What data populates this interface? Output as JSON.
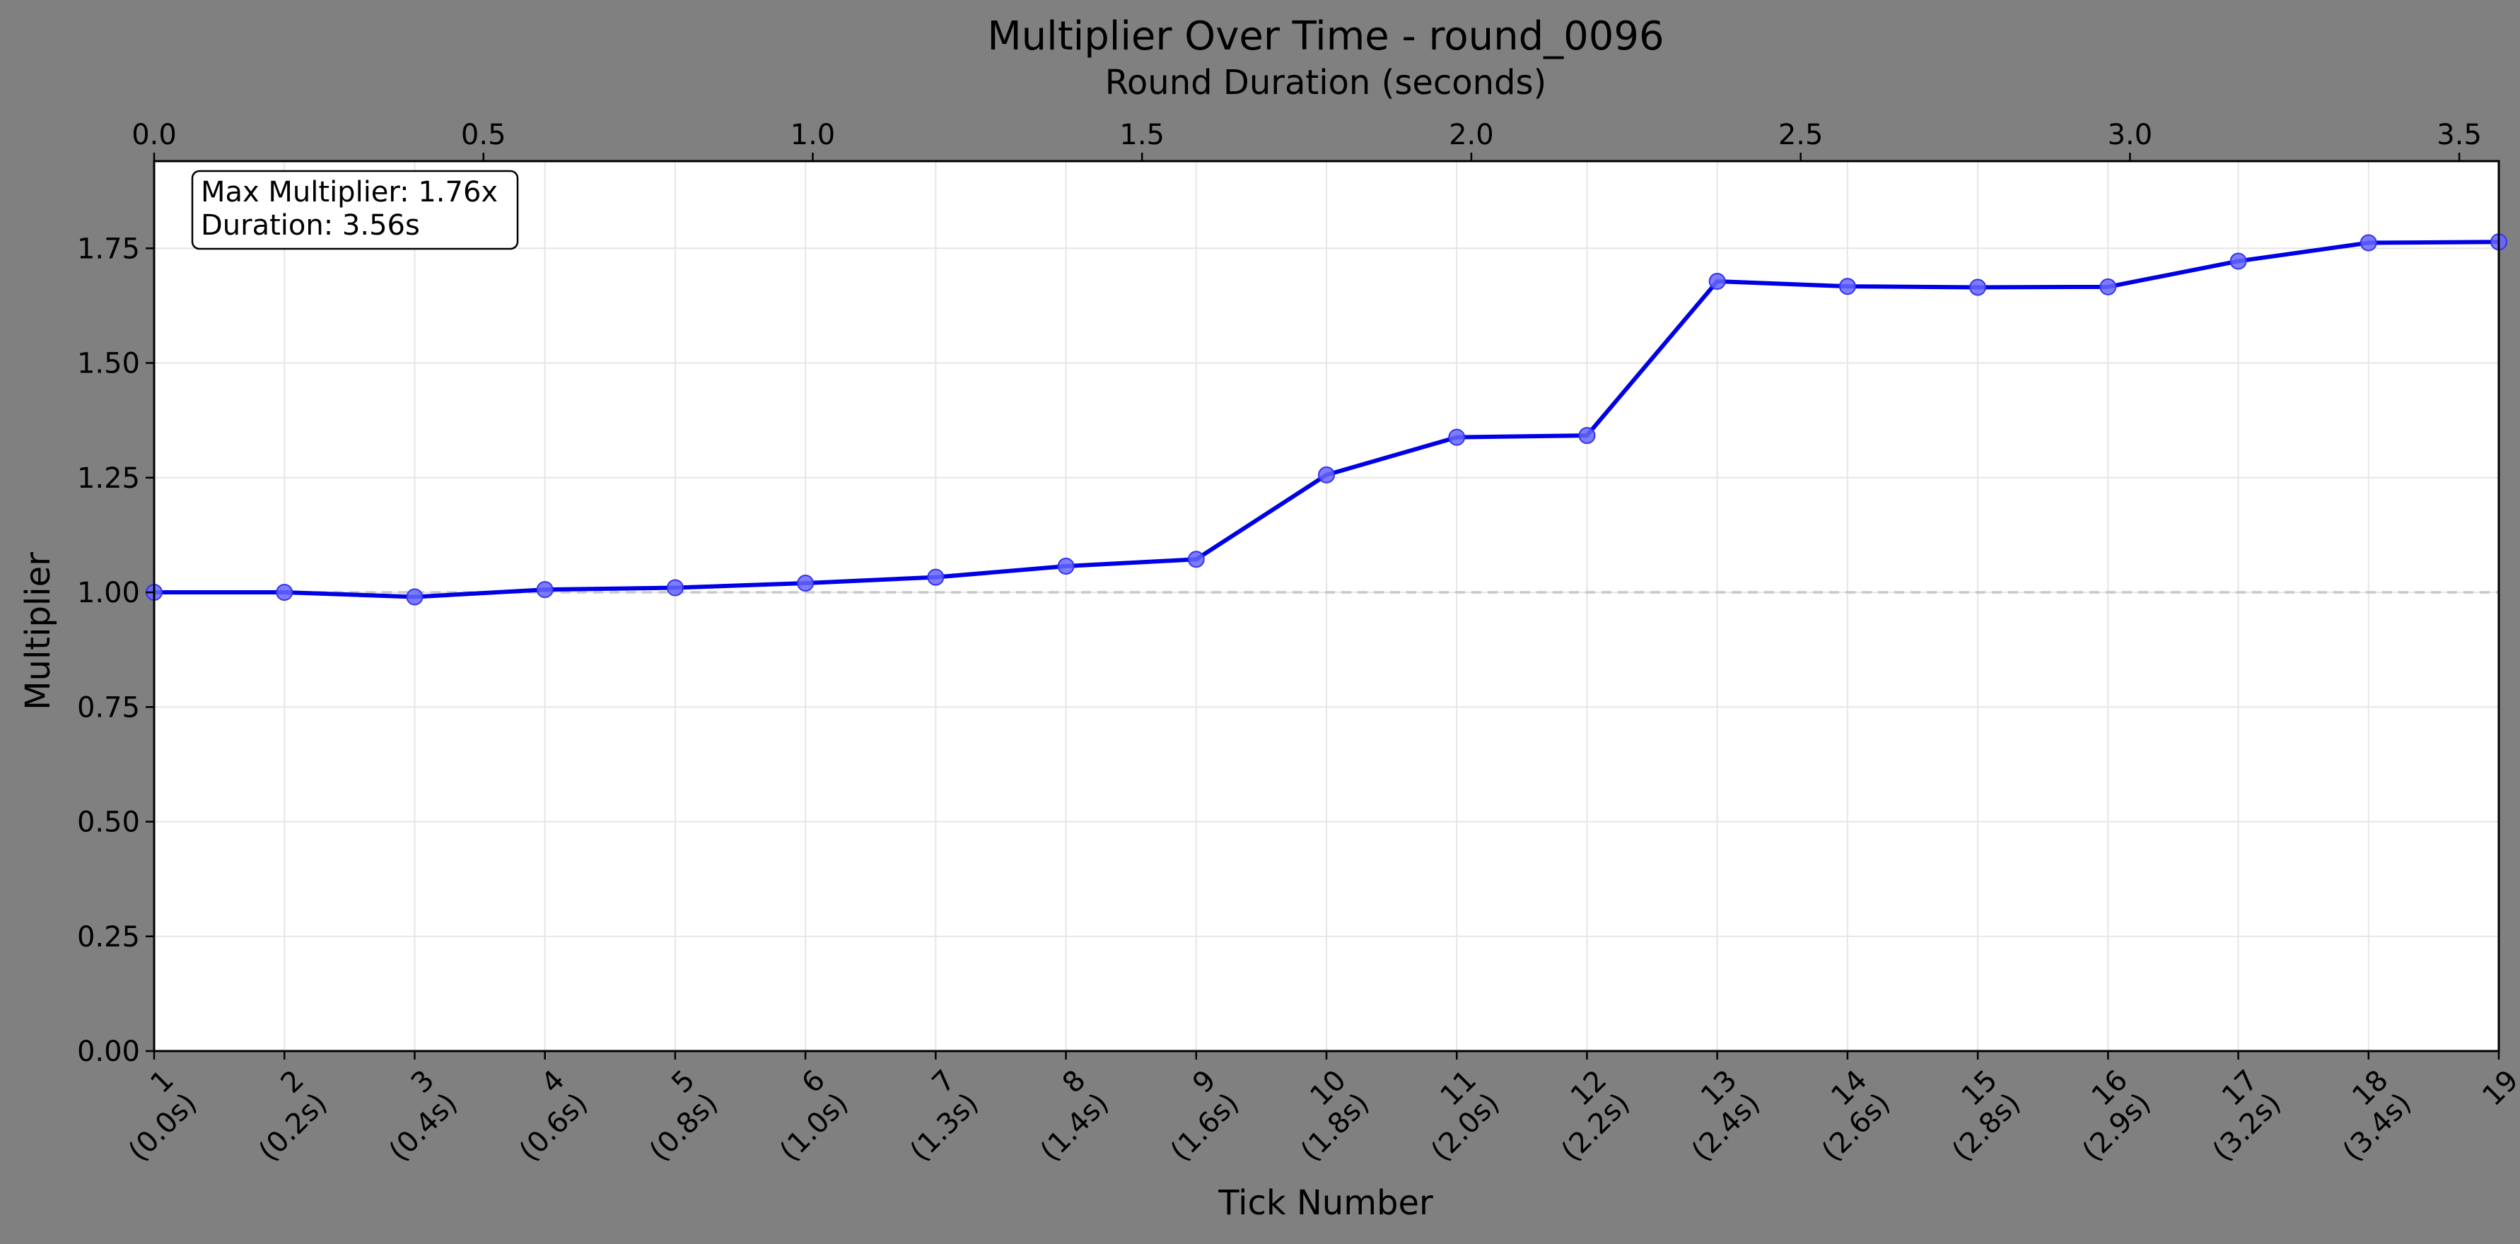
{
  "chart_data": {
    "type": "line",
    "title": "Multiplier Over Time - round_0096",
    "xlabel": "Tick Number",
    "ylabel": "Multiplier",
    "x2label": "Round Duration (seconds)",
    "x": [
      1,
      2,
      3,
      4,
      5,
      6,
      7,
      8,
      9,
      10,
      11,
      12,
      13,
      14,
      15,
      16,
      17,
      18,
      19
    ],
    "xtick_labels": [
      "1\n(0.0s)",
      "2\n(0.2s)",
      "3\n(0.4s)",
      "4\n(0.6s)",
      "5\n(0.8s)",
      "6\n(1.0s)",
      "7\n(1.3s)",
      "8\n(1.4s)",
      "9\n(1.6s)",
      "10\n(1.8s)",
      "11\n(2.0s)",
      "12\n(2.2s)",
      "13\n(2.4s)",
      "14\n(2.6s)",
      "15\n(2.8s)",
      "16\n(2.9s)",
      "17\n(3.2s)",
      "18\n(3.4s)",
      "19"
    ],
    "series": [
      {
        "values": [
          1.0,
          1.0,
          0.99,
          1.006,
          1.01,
          1.02,
          1.033,
          1.057,
          1.072,
          1.256,
          1.338,
          1.342,
          1.678,
          1.667,
          1.665,
          1.666,
          1.722,
          1.762,
          1.764
        ],
        "color": "#0000e6"
      }
    ],
    "ylim": [
      0,
      1.94
    ],
    "yticks": [
      0.0,
      0.25,
      0.5,
      0.75,
      1.0,
      1.25,
      1.5,
      1.75
    ],
    "ytick_labels": [
      "0.00",
      "0.25",
      "0.50",
      "0.75",
      "1.00",
      "1.25",
      "1.50",
      "1.75"
    ],
    "x2lim": [
      0,
      3.56
    ],
    "x2ticks": [
      0.0,
      0.5,
      1.0,
      1.5,
      2.0,
      2.5,
      3.0,
      3.5
    ],
    "x2tick_labels": [
      "0.0",
      "0.5",
      "1.0",
      "1.5",
      "2.0",
      "2.5",
      "3.0",
      "3.5"
    ],
    "reference_line": 1.0,
    "grid": true,
    "annotation": [
      "Max Multiplier: 1.76x",
      "Duration: 3.56s"
    ]
  },
  "colors": {
    "background": "#808080",
    "plot_background": "#ffffff",
    "line": "#0000e6",
    "marker": "#6666ff",
    "grid": "#e6e6e6",
    "reference_line": "#c8c8c8"
  }
}
